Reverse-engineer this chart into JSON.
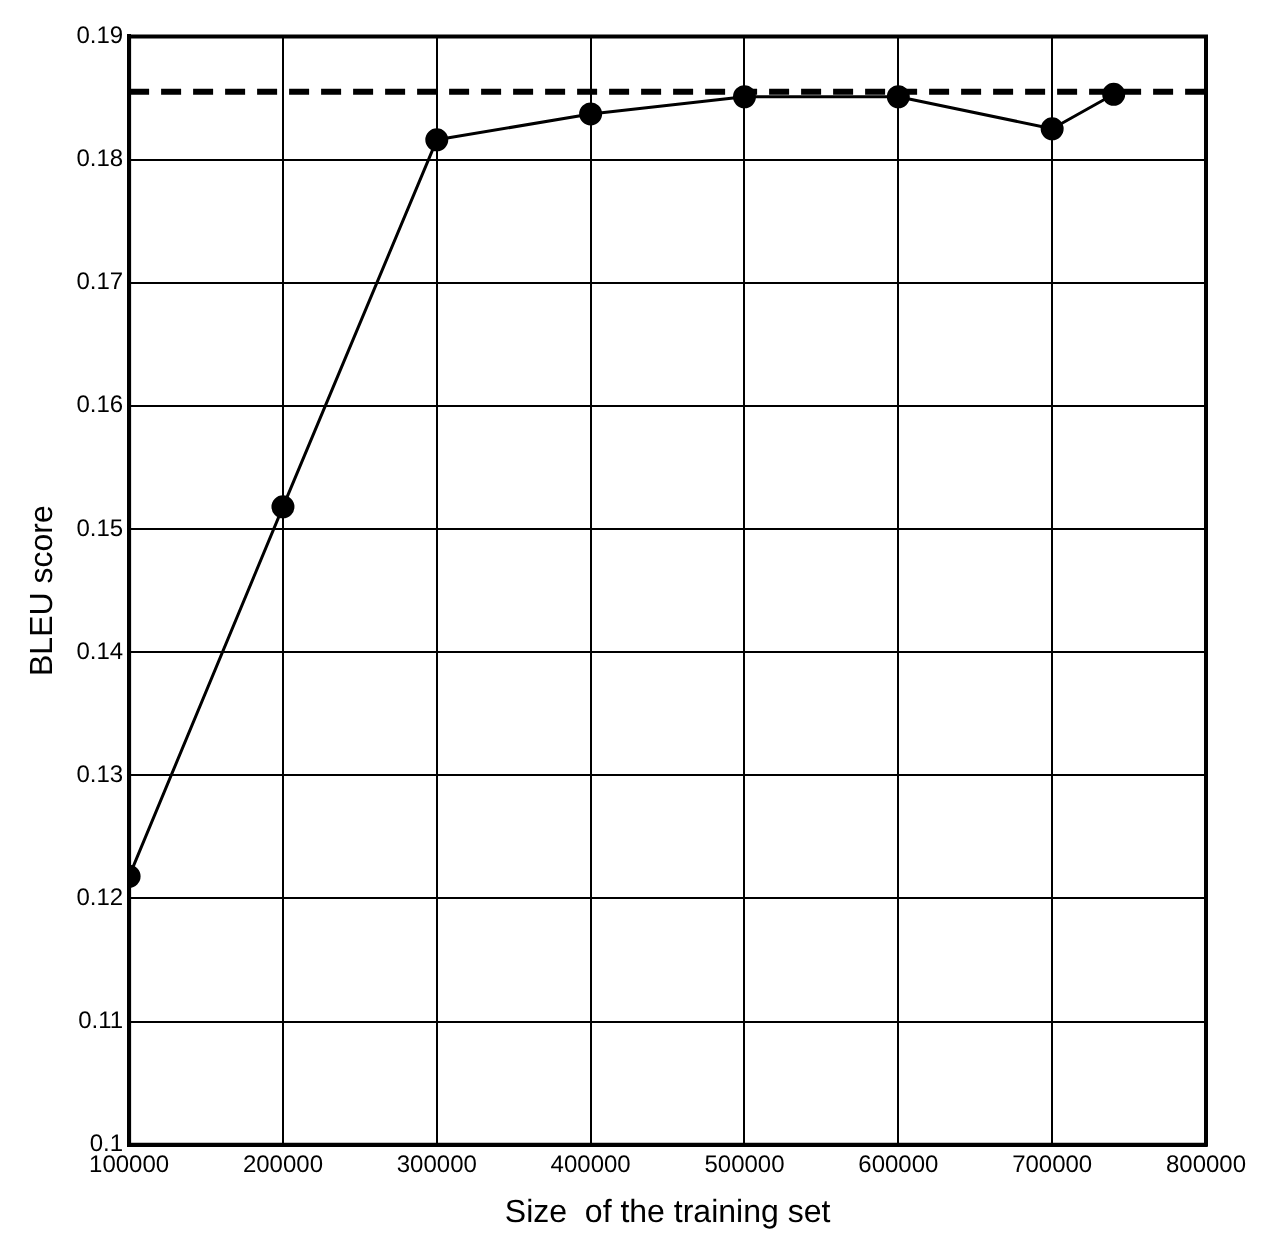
{
  "chart_data": {
    "type": "line",
    "xlabel": "Size  of the training set",
    "ylabel": "BLEU score",
    "x": [
      100000,
      200000,
      300000,
      400000,
      500000,
      600000,
      700000,
      740000
    ],
    "series": [
      {
        "color": "#000000",
        "values": [
          0.1218,
          0.1518,
          0.1816,
          0.1837,
          0.1851,
          0.1851,
          0.1825,
          0.1853
        ]
      }
    ],
    "xlim": [
      100000,
      800000
    ],
    "xticks": [
      100000,
      200000,
      300000,
      400000,
      500000,
      600000,
      700000,
      800000
    ],
    "ylim": [
      0.1,
      0.19
    ],
    "yticks": [
      0.1,
      0.11,
      0.12,
      0.13,
      0.14,
      0.15,
      0.16,
      0.17,
      0.18,
      0.19
    ],
    "ref_lines": [
      {
        "axis": "y",
        "value": 0.1855,
        "color": "#000000",
        "line_style": "dashed"
      }
    ],
    "grid": true,
    "legend": false,
    "marker": "circle",
    "line_style": "solid"
  }
}
